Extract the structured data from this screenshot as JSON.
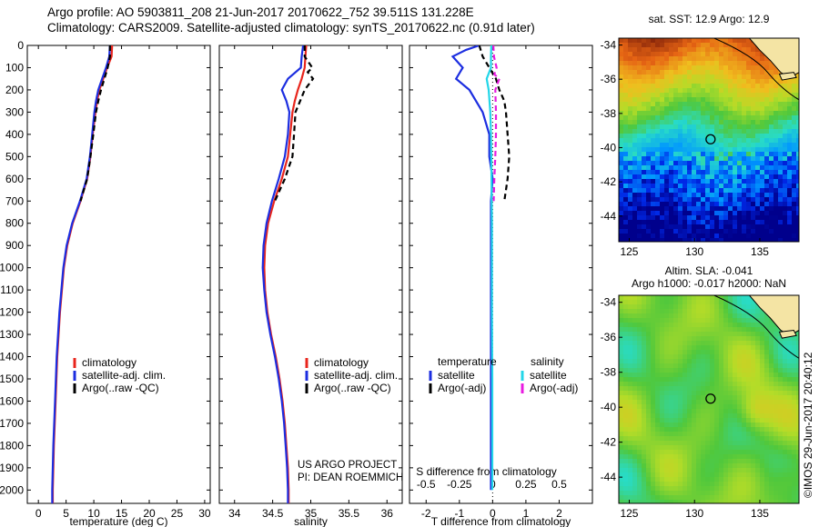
{
  "header": {
    "line1": "Argo profile: AO 5903811_208 21-Jun-2017 20170622_752 39.511S 131.228E",
    "line2": "Climatology: CARS2009. Satellite-adjusted climatology: synTS_20170622.nc (0.91d later)"
  },
  "colors": {
    "climatology": "#e8251c",
    "satellite": "#1c2ee0",
    "argo": "#000000",
    "sat_salinity": "#23d6e8",
    "argo_salinity": "#e81ce0"
  },
  "depth_axis": {
    "ticks": [
      0,
      100,
      200,
      300,
      400,
      500,
      600,
      700,
      800,
      900,
      1000,
      1100,
      1200,
      1300,
      1400,
      1500,
      1600,
      1700,
      1800,
      1900,
      2000
    ],
    "range": [
      0,
      2060
    ]
  },
  "credit": {
    "line1": "US ARGO PROJECT",
    "line2": "PI: DEAN ROEMMICH"
  },
  "watermark": "©IMOS 29-Jun-2017 20:40:12",
  "chart_data": [
    {
      "type": "line",
      "xlabel": "temperature (deg C)",
      "xlim": [
        -2,
        31
      ],
      "xticks": [
        0,
        5,
        10,
        15,
        20,
        25,
        30
      ],
      "legend": [
        "climatology",
        "satellite-adj. clim.",
        "Argo(..raw -QC)"
      ],
      "series": [
        {
          "name": "climatology",
          "depth": [
            0,
            50,
            100,
            150,
            200,
            250,
            300,
            400,
            500,
            600,
            700,
            800,
            900,
            1000,
            1200,
            1400,
            1600,
            1800,
            2000,
            2060
          ],
          "values": [
            13.3,
            13.2,
            12.4,
            11.7,
            11.0,
            10.6,
            10.3,
            9.8,
            9.4,
            8.8,
            7.6,
            6.2,
            5.2,
            4.6,
            3.9,
            3.4,
            3.1,
            2.8,
            2.6,
            2.6
          ]
        },
        {
          "name": "satellite-adj. clim.",
          "depth": [
            0,
            50,
            100,
            150,
            200,
            250,
            300,
            400,
            500,
            600,
            700,
            800,
            900,
            1000,
            1200,
            1400,
            1600,
            1800,
            2000,
            2060
          ],
          "values": [
            12.9,
            12.8,
            12.2,
            11.5,
            10.8,
            10.4,
            10.1,
            9.7,
            9.3,
            8.7,
            7.5,
            6.1,
            5.1,
            4.5,
            3.8,
            3.3,
            3.0,
            2.7,
            2.5,
            2.5
          ]
        },
        {
          "name": "Argo(..raw -QC)",
          "depth": [
            0,
            50,
            100,
            150,
            200,
            250,
            300,
            400,
            500,
            600,
            700
          ],
          "values": [
            12.9,
            12.9,
            12.5,
            11.9,
            11.3,
            10.8,
            10.4,
            9.9,
            9.4,
            8.8,
            7.6
          ]
        }
      ]
    },
    {
      "type": "line",
      "xlabel": "salinity",
      "xlim": [
        33.8,
        36.2
      ],
      "xticks": [
        34,
        34.5,
        35,
        35.5,
        36
      ],
      "legend": [
        "climatology",
        "satellite-adj. clim.",
        "Argo(..raw -QC)"
      ],
      "series": [
        {
          "name": "climatology",
          "depth": [
            0,
            50,
            100,
            150,
            200,
            250,
            300,
            400,
            500,
            600,
            700,
            800,
            900,
            1000,
            1100,
            1200,
            1300,
            1400,
            1500,
            1600,
            1700,
            1800,
            1900,
            2000,
            2060
          ],
          "values": [
            34.94,
            34.93,
            34.92,
            34.88,
            34.83,
            34.79,
            34.76,
            34.73,
            34.7,
            34.62,
            34.52,
            34.44,
            34.4,
            34.39,
            34.4,
            34.43,
            34.48,
            34.54,
            34.59,
            34.63,
            34.66,
            34.68,
            34.7,
            34.71,
            34.71
          ]
        },
        {
          "name": "satellite-adj. clim.",
          "depth": [
            0,
            50,
            100,
            150,
            200,
            250,
            300,
            400,
            500,
            600,
            700,
            800,
            900,
            1000,
            1100,
            1200,
            1300,
            1400,
            1500,
            1600,
            1700,
            1800,
            1900,
            2000,
            2060
          ],
          "values": [
            34.9,
            34.88,
            34.87,
            34.7,
            34.62,
            34.68,
            34.72,
            34.7,
            34.66,
            34.58,
            34.49,
            34.42,
            34.38,
            34.37,
            34.39,
            34.42,
            34.47,
            34.53,
            34.58,
            34.62,
            34.65,
            34.67,
            34.69,
            34.7,
            34.7
          ]
        },
        {
          "name": "Argo(..raw -QC)",
          "depth": [
            0,
            50,
            100,
            120,
            150,
            200,
            250,
            300,
            400,
            500,
            600,
            700
          ],
          "values": [
            34.92,
            34.92,
            35.02,
            34.96,
            35.03,
            34.92,
            34.86,
            34.8,
            34.78,
            34.76,
            34.66,
            34.53
          ]
        }
      ]
    },
    {
      "type": "line",
      "xlabel": "T difference from climatology",
      "top_xlabel": "S difference from climatology",
      "xlim": [
        -2.5,
        3.0
      ],
      "xticks": [
        -2,
        -1,
        0,
        1,
        2
      ],
      "top_xticks": [
        "-0.5",
        "-0.25",
        "0",
        "0.25",
        "0.5"
      ],
      "legend_title_left": "temperature",
      "legend_title_right": "salinity",
      "legend": [
        "satellite",
        "Argo(-adj)",
        "satellite",
        "Argo(-adj)"
      ],
      "series": [
        {
          "name": "T satellite",
          "depth": [
            0,
            20,
            50,
            100,
            150,
            200,
            300,
            400,
            500,
            600,
            700,
            800,
            900,
            1000,
            1200,
            1500,
            2000
          ],
          "values": [
            -0.4,
            -0.8,
            -1.2,
            -0.9,
            -1.1,
            -0.7,
            -0.3,
            -0.1,
            -0.1,
            0.0,
            -0.05,
            -0.05,
            -0.05,
            -0.05,
            -0.05,
            -0.05,
            -0.05
          ]
        },
        {
          "name": "T Argo(-adj)",
          "depth": [
            0,
            50,
            100,
            150,
            200,
            250,
            300,
            400,
            500,
            600,
            700
          ],
          "values": [
            -0.4,
            -0.3,
            -0.1,
            0.1,
            0.2,
            0.35,
            0.4,
            0.45,
            0.5,
            0.45,
            0.35
          ]
        },
        {
          "name": "S satellite",
          "depth": [
            0,
            50,
            100,
            150,
            200,
            300,
            400,
            500,
            700,
            800,
            900,
            1000,
            1200,
            1500,
            2000
          ],
          "values": [
            -0.04,
            -0.05,
            -0.05,
            -0.18,
            -0.12,
            -0.07,
            -0.05,
            -0.04,
            -0.03,
            -0.02,
            -0.02,
            -0.02,
            -0.02,
            -0.01,
            -0.01
          ]
        },
        {
          "name": "S Argo(-adj)",
          "depth": [
            0,
            50,
            100,
            130,
            150,
            200,
            300,
            400,
            500,
            600,
            700
          ],
          "values": [
            0.02,
            0.04,
            0.12,
            0.05,
            0.2,
            0.08,
            0.1,
            0.1,
            0.08,
            0.05,
            0.03
          ]
        }
      ]
    }
  ],
  "maps": {
    "sst": {
      "title": "sat. SST: 12.9 Argo: 12.9",
      "xticks": [
        "125",
        "130",
        "135"
      ],
      "yticks": [
        "-34",
        "-36",
        "-38",
        "-40",
        "-42",
        "-44"
      ]
    },
    "sla": {
      "title1": "Altim. SLA: -0.041",
      "title2": "Argo h1000: -0.017 h2000: NaN",
      "xticks": [
        "125",
        "130",
        "135"
      ],
      "yticks": [
        "-34",
        "-36",
        "-38",
        "-40",
        "-42",
        "-44"
      ]
    }
  }
}
